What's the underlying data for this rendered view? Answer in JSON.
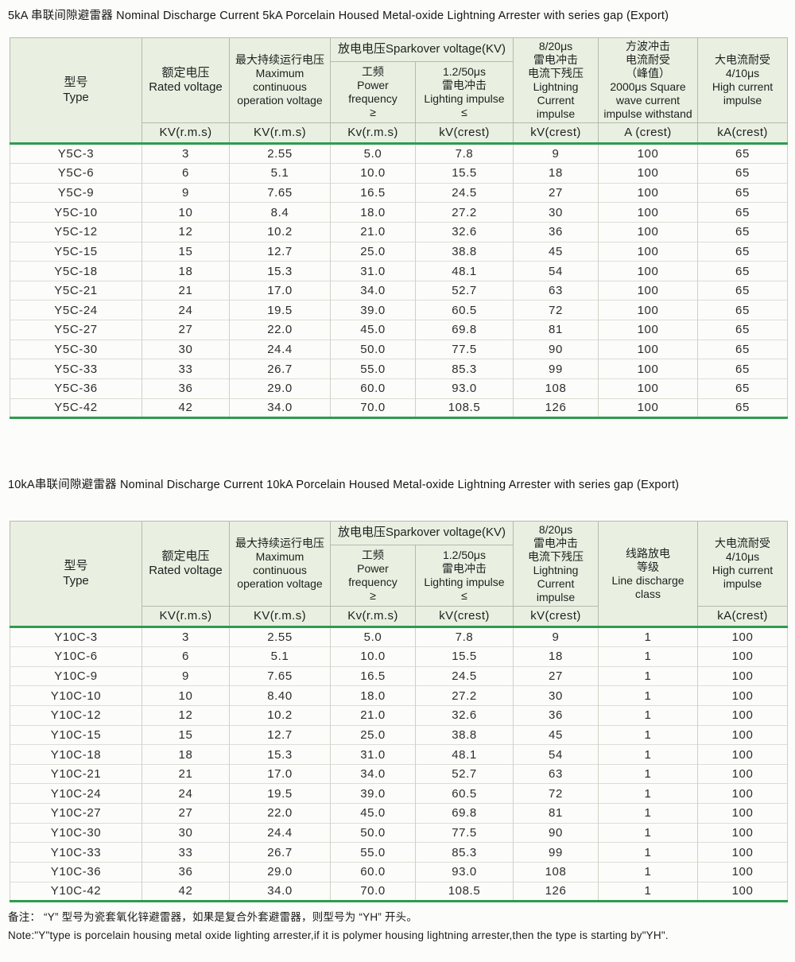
{
  "colors": {
    "accent_green": "#2e9b50",
    "header_bg": "#e9f0e1",
    "grid_gray": "#ced2c6"
  },
  "table1": {
    "title": "5kA 串联间隙避雷器 Nominal Discharge Current 5kA Porcelain Housed Metal-oxide Lightning Arrester with series gap (Export)",
    "headers": {
      "type": "型号\nType",
      "rated_voltage": "额定电压\nRated voltage",
      "max_continuous": "最大持续运行电压\nMaximum\ncontinuous\noperation voltage",
      "sparkover_group": "放电电压Sparkover voltage(KV)",
      "power_frequency": "工频\nPower\nfrequency\n≥",
      "lightning_impulse": "1.2/50μs\n雷电冲击\nLighting impulse\n≤",
      "current_impulse": "8/20μs\n雷电冲击\n电流下残压\nLightning Current\nimpulse",
      "square_wave": "方波冲击\n电流耐受\n（峰值）\n2000μs Square\nwave current\nimpulse withstand",
      "high_current": "大电流耐受\n4/10μs\nHigh current\nimpulse"
    },
    "units": [
      "KV(r.m.s)",
      "KV(r.m.s)",
      "Kv(r.m.s)",
      "kV(crest)",
      "kV(crest)",
      "A (crest)",
      "kA(crest)"
    ],
    "rows": [
      [
        "Y5C-3",
        "3",
        "2.55",
        "5.0",
        "7.8",
        "9",
        "100",
        "65"
      ],
      [
        "Y5C-6",
        "6",
        "5.1",
        "10.0",
        "15.5",
        "18",
        "100",
        "65"
      ],
      [
        "Y5C-9",
        "9",
        "7.65",
        "16.5",
        "24.5",
        "27",
        "100",
        "65"
      ],
      [
        "Y5C-10",
        "10",
        "8.4",
        "18.0",
        "27.2",
        "30",
        "100",
        "65"
      ],
      [
        "Y5C-12",
        "12",
        "10.2",
        "21.0",
        "32.6",
        "36",
        "100",
        "65"
      ],
      [
        "Y5C-15",
        "15",
        "12.7",
        "25.0",
        "38.8",
        "45",
        "100",
        "65"
      ],
      [
        "Y5C-18",
        "18",
        "15.3",
        "31.0",
        "48.1",
        "54",
        "100",
        "65"
      ],
      [
        "Y5C-21",
        "21",
        "17.0",
        "34.0",
        "52.7",
        "63",
        "100",
        "65"
      ],
      [
        "Y5C-24",
        "24",
        "19.5",
        "39.0",
        "60.5",
        "72",
        "100",
        "65"
      ],
      [
        "Y5C-27",
        "27",
        "22.0",
        "45.0",
        "69.8",
        "81",
        "100",
        "65"
      ],
      [
        "Y5C-30",
        "30",
        "24.4",
        "50.0",
        "77.5",
        "90",
        "100",
        "65"
      ],
      [
        "Y5C-33",
        "33",
        "26.7",
        "55.0",
        "85.3",
        "99",
        "100",
        "65"
      ],
      [
        "Y5C-36",
        "36",
        "29.0",
        "60.0",
        "93.0",
        "108",
        "100",
        "65"
      ],
      [
        "Y5C-42",
        "42",
        "34.0",
        "70.0",
        "108.5",
        "126",
        "100",
        "65"
      ]
    ]
  },
  "table2": {
    "title": "10kA串联间隙避雷器 Nominal Discharge Current 10kA Porcelain Housed Metal-oxide Lightning Arrester with series gap (Export)",
    "headers": {
      "type": "型号\nType",
      "rated_voltage": "额定电压\nRated voltage",
      "max_continuous": "最大持续运行电压\nMaximum\ncontinuous\noperation voltage",
      "sparkover_group": "放电电压Sparkover voltage(KV)",
      "power_frequency": "工频\nPower\nfrequency\n≥",
      "lightning_impulse": "1.2/50μs\n雷电冲击\nLighting impulse\n≤",
      "current_impulse": "8/20μs\n雷电冲击\n电流下残压\nLightning Current\nimpulse",
      "line_discharge": "线路放电\n等级\nLine discharge\nclass",
      "high_current": "大电流耐受\n4/10μs\nHigh current\nimpulse"
    },
    "units": [
      "KV(r.m.s)",
      "KV(r.m.s)",
      "Kv(r.m.s)",
      "kV(crest)",
      "kV(crest)",
      "kA(crest)"
    ],
    "rows": [
      [
        "Y10C-3",
        "3",
        "2.55",
        "5.0",
        "7.8",
        "9",
        "1",
        "100"
      ],
      [
        "Y10C-6",
        "6",
        "5.1",
        "10.0",
        "15.5",
        "18",
        "1",
        "100"
      ],
      [
        "Y10C-9",
        "9",
        "7.65",
        "16.5",
        "24.5",
        "27",
        "1",
        "100"
      ],
      [
        "Y10C-10",
        "10",
        "8.40",
        "18.0",
        "27.2",
        "30",
        "1",
        "100"
      ],
      [
        "Y10C-12",
        "12",
        "10.2",
        "21.0",
        "32.6",
        "36",
        "1",
        "100"
      ],
      [
        "Y10C-15",
        "15",
        "12.7",
        "25.0",
        "38.8",
        "45",
        "1",
        "100"
      ],
      [
        "Y10C-18",
        "18",
        "15.3",
        "31.0",
        "48.1",
        "54",
        "1",
        "100"
      ],
      [
        "Y10C-21",
        "21",
        "17.0",
        "34.0",
        "52.7",
        "63",
        "1",
        "100"
      ],
      [
        "Y10C-24",
        "24",
        "19.5",
        "39.0",
        "60.5",
        "72",
        "1",
        "100"
      ],
      [
        "Y10C-27",
        "27",
        "22.0",
        "45.0",
        "69.8",
        "81",
        "1",
        "100"
      ],
      [
        "Y10C-30",
        "30",
        "24.4",
        "50.0",
        "77.5",
        "90",
        "1",
        "100"
      ],
      [
        "Y10C-33",
        "33",
        "26.7",
        "55.0",
        "85.3",
        "99",
        "1",
        "100"
      ],
      [
        "Y10C-36",
        "36",
        "29.0",
        "60.0",
        "93.0",
        "108",
        "1",
        "100"
      ],
      [
        "Y10C-42",
        "42",
        "34.0",
        "70.0",
        "108.5",
        "126",
        "1",
        "100"
      ]
    ]
  },
  "notes": {
    "line1": "备注： “Y” 型号为瓷套氧化锌避雷器，如果是复合外套避雷器，则型号为 “YH” 开头。",
    "line2": "Note:\"Y\"type is porcelain housing metal oxide lighting arrester,if it is polymer housing lightning arrester,then the type is starting by\"YH\"."
  }
}
